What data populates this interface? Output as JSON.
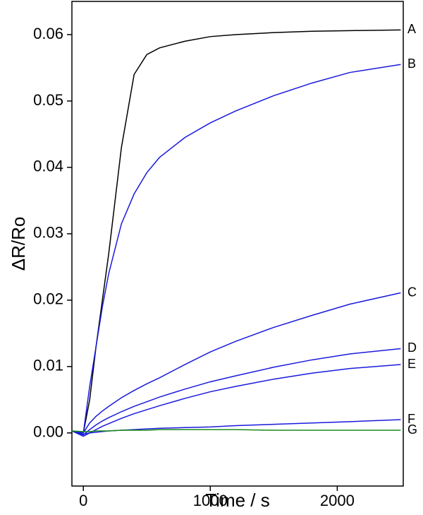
{
  "chart_data": {
    "type": "line",
    "xlabel": "Time / s",
    "ylabel": "ΔR/Ro",
    "x": [
      -90,
      0,
      50,
      100,
      150,
      200,
      300,
      400,
      500,
      600,
      800,
      1000,
      1200,
      1500,
      1800,
      2100,
      2500
    ],
    "series": [
      {
        "name": "A",
        "color": "#000000",
        "values": [
          0.0003,
          0.0,
          0.005,
          0.013,
          0.02,
          0.027,
          0.043,
          0.054,
          0.057,
          0.058,
          0.059,
          0.0597,
          0.06,
          0.0603,
          0.0605,
          0.0606,
          0.0607
        ]
      },
      {
        "name": "B",
        "color": "#1a1adc",
        "values": [
          0.0003,
          0.0,
          0.007,
          0.013,
          0.019,
          0.024,
          0.0315,
          0.036,
          0.0392,
          0.0415,
          0.0445,
          0.0467,
          0.0485,
          0.0508,
          0.0527,
          0.0543,
          0.0555
        ]
      },
      {
        "name": "C",
        "color": "#1a1adc",
        "values": [
          0.0003,
          0.0,
          0.0015,
          0.0025,
          0.0033,
          0.004,
          0.0053,
          0.0064,
          0.0074,
          0.0083,
          0.0103,
          0.0122,
          0.0138,
          0.0159,
          0.0177,
          0.0194,
          0.0211
        ]
      },
      {
        "name": "D",
        "color": "#1a1adc",
        "values": [
          0.0003,
          -0.0003,
          0.0005,
          0.0012,
          0.0018,
          0.0023,
          0.0032,
          0.004,
          0.0047,
          0.0054,
          0.0066,
          0.0077,
          0.0086,
          0.0099,
          0.011,
          0.0119,
          0.0127
        ]
      },
      {
        "name": "E",
        "color": "#1a1adc",
        "values": [
          0.0003,
          -0.0005,
          0.0,
          0.0005,
          0.001,
          0.0014,
          0.0022,
          0.0029,
          0.0035,
          0.0041,
          0.0052,
          0.0062,
          0.007,
          0.0081,
          0.009,
          0.0097,
          0.0103
        ]
      },
      {
        "name": "F",
        "color": "#1a1adc",
        "values": [
          0.0003,
          -0.0002,
          0.0,
          0.0001,
          0.0002,
          0.0003,
          0.0004,
          0.0005,
          0.0006,
          0.0007,
          0.0008,
          0.0009,
          0.0011,
          0.0013,
          0.0015,
          0.0017,
          0.002
        ]
      },
      {
        "name": "G",
        "color": "#1a8a1a",
        "values": [
          0.0003,
          0.0002,
          0.0002,
          0.0003,
          0.0003,
          0.0003,
          0.0004,
          0.0004,
          0.0004,
          0.0005,
          0.0005,
          0.0005,
          0.0005,
          0.0004,
          0.0004,
          0.0004,
          0.0004
        ]
      }
    ],
    "xlim": [
      -90,
      2520
    ],
    "ylim": [
      -0.008,
      0.065
    ],
    "xticks": [
      0,
      1000,
      2000
    ],
    "yticks": [
      {
        "value": 0,
        "label": "0.00"
      },
      0.01,
      0.02,
      0.03,
      0.04,
      0.05,
      0.06
    ]
  }
}
